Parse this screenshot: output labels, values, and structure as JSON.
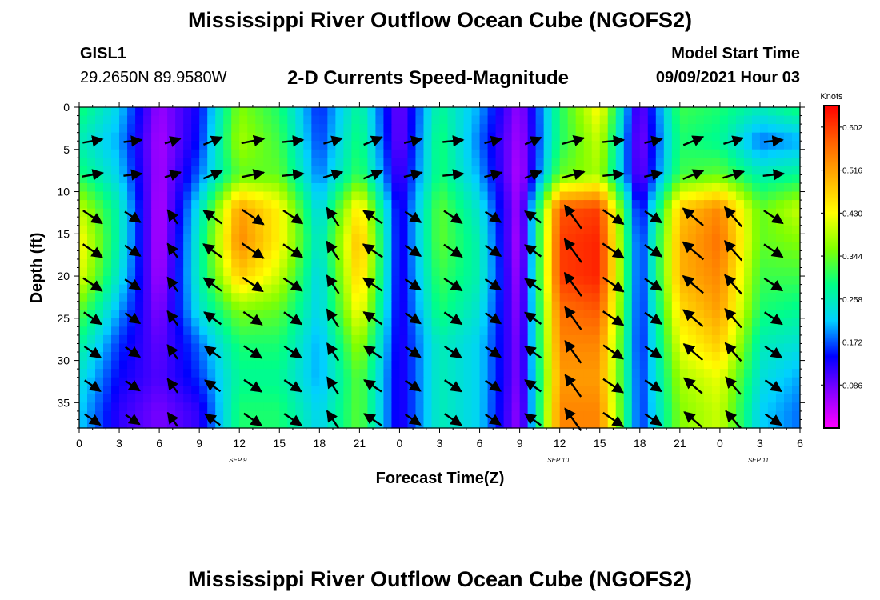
{
  "header": {
    "title": "Mississippi River Outflow Ocean Cube (NGOFS2)",
    "station_id": "GISL1",
    "station_coords": "29.2650N  89.9580W",
    "subtitle": "2-D Currents Speed-Magnitude",
    "model_start_label": "Model Start Time",
    "model_start_value": "09/09/2021 Hour 03"
  },
  "footer": {
    "title": "Mississippi River Outflow Ocean Cube (NGOFS2)"
  },
  "chart_data": {
    "type": "heatmap",
    "xlabel": "Forecast Time(Z)",
    "ylabel": "Depth (ft)",
    "xlim": [
      0,
      54
    ],
    "ylim": [
      38,
      0
    ],
    "y_reversed": true,
    "x_ticks": [
      {
        "v": 0,
        "label": "0"
      },
      {
        "v": 3,
        "label": "3"
      },
      {
        "v": 6,
        "label": "6"
      },
      {
        "v": 9,
        "label": "9"
      },
      {
        "v": 12,
        "label": "12"
      },
      {
        "v": 15,
        "label": "15"
      },
      {
        "v": 18,
        "label": "18"
      },
      {
        "v": 21,
        "label": "21"
      },
      {
        "v": 24,
        "label": "0"
      },
      {
        "v": 27,
        "label": "3"
      },
      {
        "v": 30,
        "label": "6"
      },
      {
        "v": 33,
        "label": "9"
      },
      {
        "v": 36,
        "label": "12"
      },
      {
        "v": 39,
        "label": "15"
      },
      {
        "v": 42,
        "label": "18"
      },
      {
        "v": 45,
        "label": "21"
      },
      {
        "v": 48,
        "label": "0"
      },
      {
        "v": 51,
        "label": "3"
      },
      {
        "v": 54,
        "label": "6"
      }
    ],
    "date_labels": [
      {
        "v": 12,
        "label": "SEP 9"
      },
      {
        "v": 36,
        "label": "SEP 10"
      },
      {
        "v": 51,
        "label": "SEP 11"
      }
    ],
    "y_ticks": [
      0,
      5,
      10,
      15,
      20,
      25,
      30,
      35
    ],
    "colorbar": {
      "title": "Knots",
      "min": 0.0,
      "max": 0.645,
      "ticks": [
        0.086,
        0.172,
        0.258,
        0.344,
        0.43,
        0.516,
        0.602
      ],
      "colors": [
        "#ff00ff",
        "#8800ff",
        "#0000ff",
        "#00d0ff",
        "#00ff88",
        "#80ff00",
        "#ffff00",
        "#ffb000",
        "#ff6000",
        "#ff0000"
      ]
    },
    "speed_profile": {
      "description_of_rows": "depth (ft) rows of speed in knots, columns = forecast hours 0..54 step 3",
      "depths": [
        0,
        4,
        8,
        12,
        16,
        20,
        24,
        28,
        32,
        36
      ],
      "hours": [
        0,
        3,
        6,
        9,
        12,
        15,
        18,
        21,
        24,
        27,
        30,
        33,
        36,
        39,
        42,
        45,
        48,
        51,
        54
      ],
      "values": [
        [
          0.3,
          0.22,
          0.06,
          0.14,
          0.36,
          0.3,
          0.15,
          0.28,
          0.08,
          0.28,
          0.2,
          0.06,
          0.3,
          0.44,
          0.08,
          0.32,
          0.3,
          0.26,
          0.3
        ],
        [
          0.26,
          0.2,
          0.05,
          0.15,
          0.38,
          0.32,
          0.16,
          0.3,
          0.08,
          0.3,
          0.18,
          0.05,
          0.3,
          0.4,
          0.07,
          0.3,
          0.28,
          0.18,
          0.2
        ],
        [
          0.3,
          0.22,
          0.05,
          0.18,
          0.34,
          0.34,
          0.18,
          0.32,
          0.1,
          0.3,
          0.2,
          0.04,
          0.34,
          0.38,
          0.08,
          0.32,
          0.34,
          0.26,
          0.28
        ],
        [
          0.4,
          0.26,
          0.04,
          0.24,
          0.52,
          0.44,
          0.22,
          0.46,
          0.12,
          0.34,
          0.24,
          0.05,
          0.58,
          0.6,
          0.12,
          0.48,
          0.54,
          0.34,
          0.4
        ],
        [
          0.44,
          0.26,
          0.04,
          0.26,
          0.54,
          0.44,
          0.24,
          0.5,
          0.12,
          0.34,
          0.26,
          0.04,
          0.6,
          0.62,
          0.14,
          0.5,
          0.56,
          0.34,
          0.36
        ],
        [
          0.42,
          0.24,
          0.05,
          0.26,
          0.48,
          0.4,
          0.22,
          0.48,
          0.12,
          0.32,
          0.26,
          0.05,
          0.6,
          0.62,
          0.14,
          0.5,
          0.54,
          0.32,
          0.32
        ],
        [
          0.34,
          0.2,
          0.07,
          0.24,
          0.36,
          0.34,
          0.22,
          0.44,
          0.12,
          0.3,
          0.24,
          0.06,
          0.56,
          0.58,
          0.14,
          0.46,
          0.52,
          0.3,
          0.28
        ],
        [
          0.28,
          0.16,
          0.09,
          0.18,
          0.3,
          0.3,
          0.2,
          0.38,
          0.12,
          0.26,
          0.22,
          0.07,
          0.54,
          0.54,
          0.14,
          0.42,
          0.48,
          0.26,
          0.24
        ],
        [
          0.24,
          0.14,
          0.1,
          0.16,
          0.28,
          0.28,
          0.2,
          0.34,
          0.12,
          0.26,
          0.22,
          0.07,
          0.52,
          0.52,
          0.15,
          0.38,
          0.42,
          0.24,
          0.2
        ],
        [
          0.22,
          0.12,
          0.08,
          0.12,
          0.3,
          0.3,
          0.22,
          0.34,
          0.12,
          0.26,
          0.22,
          0.06,
          0.54,
          0.54,
          0.15,
          0.36,
          0.4,
          0.22,
          0.18
        ]
      ]
    }
  }
}
